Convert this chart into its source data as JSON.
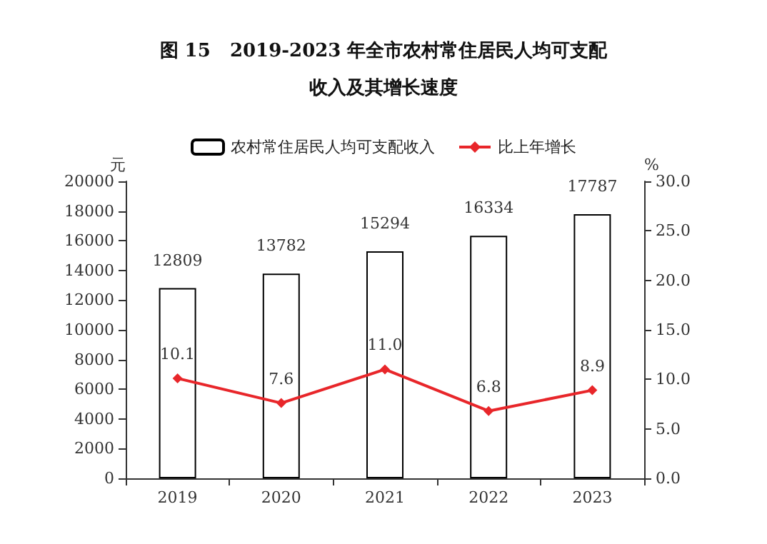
{
  "chart_data": {
    "type": "bar",
    "title": "图 15   2019-2023 年全市农村常住居民人均可支配收入及其增长速度",
    "categories": [
      "2019",
      "2020",
      "2021",
      "2022",
      "2023"
    ],
    "ylabel": "元",
    "y2label": "%",
    "series": [
      {
        "name": "农村常住居民人均可支配收入",
        "color": "#ffffff",
        "values": [
          12809,
          13782,
          15294,
          16334,
          17787
        ],
        "value_labels": [
          "12809",
          "13782",
          "15294",
          "16334",
          "17787"
        ]
      },
      {
        "name": "比上年增长",
        "type": "line",
        "axis": "y2",
        "color": "#e8262a",
        "marker": "diamond",
        "values": [
          10.1,
          7.6,
          11.0,
          6.8,
          8.9
        ],
        "value_labels": [
          "10.1",
          "7.6",
          "11.0",
          "6.8",
          "8.9"
        ]
      }
    ],
    "ylim": [
      0,
      20000
    ],
    "yticks": [
      0,
      2000,
      4000,
      6000,
      8000,
      10000,
      12000,
      14000,
      16000,
      18000,
      20000
    ],
    "y2lim": [
      0,
      30
    ],
    "y2ticks": [
      {
        "value": 0,
        "label": "0.0"
      },
      {
        "value": 5,
        "label": "5.0"
      },
      {
        "value": 10,
        "label": "10.0"
      },
      {
        "value": 15,
        "label": "15.0"
      },
      {
        "value": 20,
        "label": "20.0"
      },
      {
        "value": 25,
        "label": "25.0"
      },
      {
        "value": 30,
        "label": "30.0"
      }
    ],
    "legend": "top",
    "grid": false
  }
}
